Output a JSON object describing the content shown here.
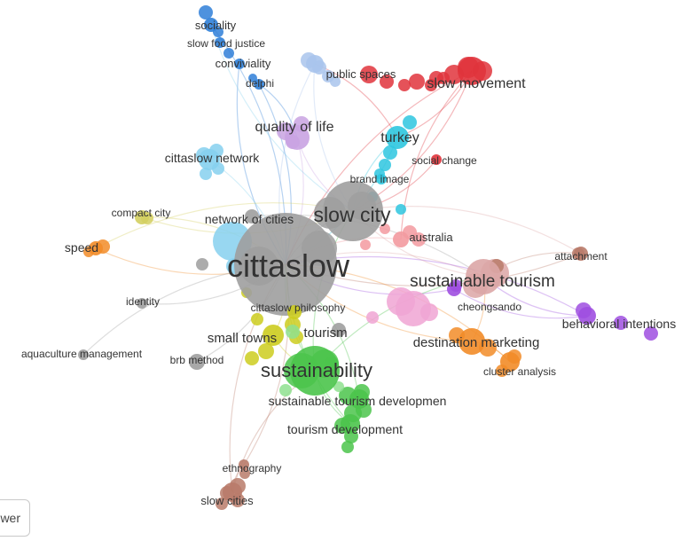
{
  "diagram": {
    "type": "keyword co-occurrence network",
    "colors": {
      "gray": "#9e9e9e",
      "blue": "#2f7fd8",
      "lightblue": "#a9c4ec",
      "red": "#e0343c",
      "cyan": "#2ec6df",
      "skyblue": "#86d0ee",
      "lavender": "#c9a3e2",
      "olive": "#d3cf5f",
      "orange": "#f28c28",
      "yellow": "#cccc1f",
      "green": "#4bc44b",
      "lightgreen": "#8fe08f",
      "pink": "#f0a4d4",
      "rose": "#dca6a6",
      "brown": "#b97b6a",
      "purple": "#9f4fe0",
      "salmon": "#f39aa0"
    },
    "nodes": [
      {
        "id": "cittaslow",
        "label": "cittaslow",
        "cluster": "gray",
        "weight": 10
      },
      {
        "id": "slow-city",
        "label": "slow city",
        "cluster": "gray",
        "weight": 6
      },
      {
        "id": "network-of-cities",
        "label": "network of cities",
        "cluster": "gray",
        "weight": 2
      },
      {
        "id": "identity",
        "label": "identity",
        "cluster": "gray",
        "weight": 1
      },
      {
        "id": "aquaculture",
        "label": "aquaculture management",
        "cluster": "gray",
        "weight": 1
      },
      {
        "id": "brb",
        "label": "brb method",
        "cluster": "gray",
        "weight": 1
      },
      {
        "id": "tourism",
        "label": "tourism",
        "cluster": "gray",
        "weight": 2
      },
      {
        "id": "sociality",
        "label": "sociality",
        "cluster": "blue",
        "weight": 1
      },
      {
        "id": "slow-food-justice",
        "label": "slow food justice",
        "cluster": "blue",
        "weight": 1
      },
      {
        "id": "conviviality",
        "label": "conviviality",
        "cluster": "blue",
        "weight": 1
      },
      {
        "id": "delphi",
        "label": "delphi",
        "cluster": "blue",
        "weight": 1
      },
      {
        "id": "public-spaces",
        "label": "public spaces",
        "cluster": "lightblue",
        "weight": 1
      },
      {
        "id": "slow-movement",
        "label": "slow movement",
        "cluster": "red",
        "weight": 2
      },
      {
        "id": "quality-of-life",
        "label": "quality of life",
        "cluster": "lavender",
        "weight": 2
      },
      {
        "id": "turkey",
        "label": "turkey",
        "cluster": "cyan",
        "weight": 2
      },
      {
        "id": "social-change",
        "label": "social change",
        "cluster": "red",
        "weight": 1
      },
      {
        "id": "brand-image",
        "label": "brand image",
        "cluster": "cyan",
        "weight": 1
      },
      {
        "id": "cittaslow-network",
        "label": "cittaslow network",
        "cluster": "skyblue",
        "weight": 1
      },
      {
        "id": "compact-city",
        "label": "compact city",
        "cluster": "olive",
        "weight": 1
      },
      {
        "id": "speed",
        "label": "speed",
        "cluster": "orange",
        "weight": 1
      },
      {
        "id": "australia",
        "label": "australia",
        "cluster": "salmon",
        "weight": 1
      },
      {
        "id": "attachment",
        "label": "attachment",
        "cluster": "brown",
        "weight": 1
      },
      {
        "id": "sustainable-tourism",
        "label": "sustainable tourism",
        "cluster": "rose",
        "weight": 4
      },
      {
        "id": "cheongsando",
        "label": "cheongsando",
        "cluster": "purple",
        "weight": 1
      },
      {
        "id": "behavioral",
        "label": "behavioral intentions",
        "cluster": "purple",
        "weight": 1
      },
      {
        "id": "cittaslow-philosophy",
        "label": "cittaslow philosophy",
        "cluster": "yellow",
        "weight": 1
      },
      {
        "id": "small-towns",
        "label": "small towns",
        "cluster": "yellow",
        "weight": 2
      },
      {
        "id": "destination-marketing",
        "label": "destination marketing",
        "cluster": "orange",
        "weight": 2
      },
      {
        "id": "cluster-analysis",
        "label": "cluster analysis",
        "cluster": "orange",
        "weight": 1
      },
      {
        "id": "sustainability",
        "label": "sustainability",
        "cluster": "green",
        "weight": 5
      },
      {
        "id": "sustainable-tourism-dev",
        "label": "sustainable tourism developmen",
        "cluster": "green",
        "weight": 2
      },
      {
        "id": "tourism-development",
        "label": "tourism development",
        "cluster": "green",
        "weight": 2
      },
      {
        "id": "ethnography",
        "label": "ethnography",
        "cluster": "brown",
        "weight": 1
      },
      {
        "id": "slow-cities",
        "label": "slow cities",
        "cluster": "brown",
        "weight": 1
      }
    ]
  },
  "ui": {
    "viewer_label": "wer"
  }
}
